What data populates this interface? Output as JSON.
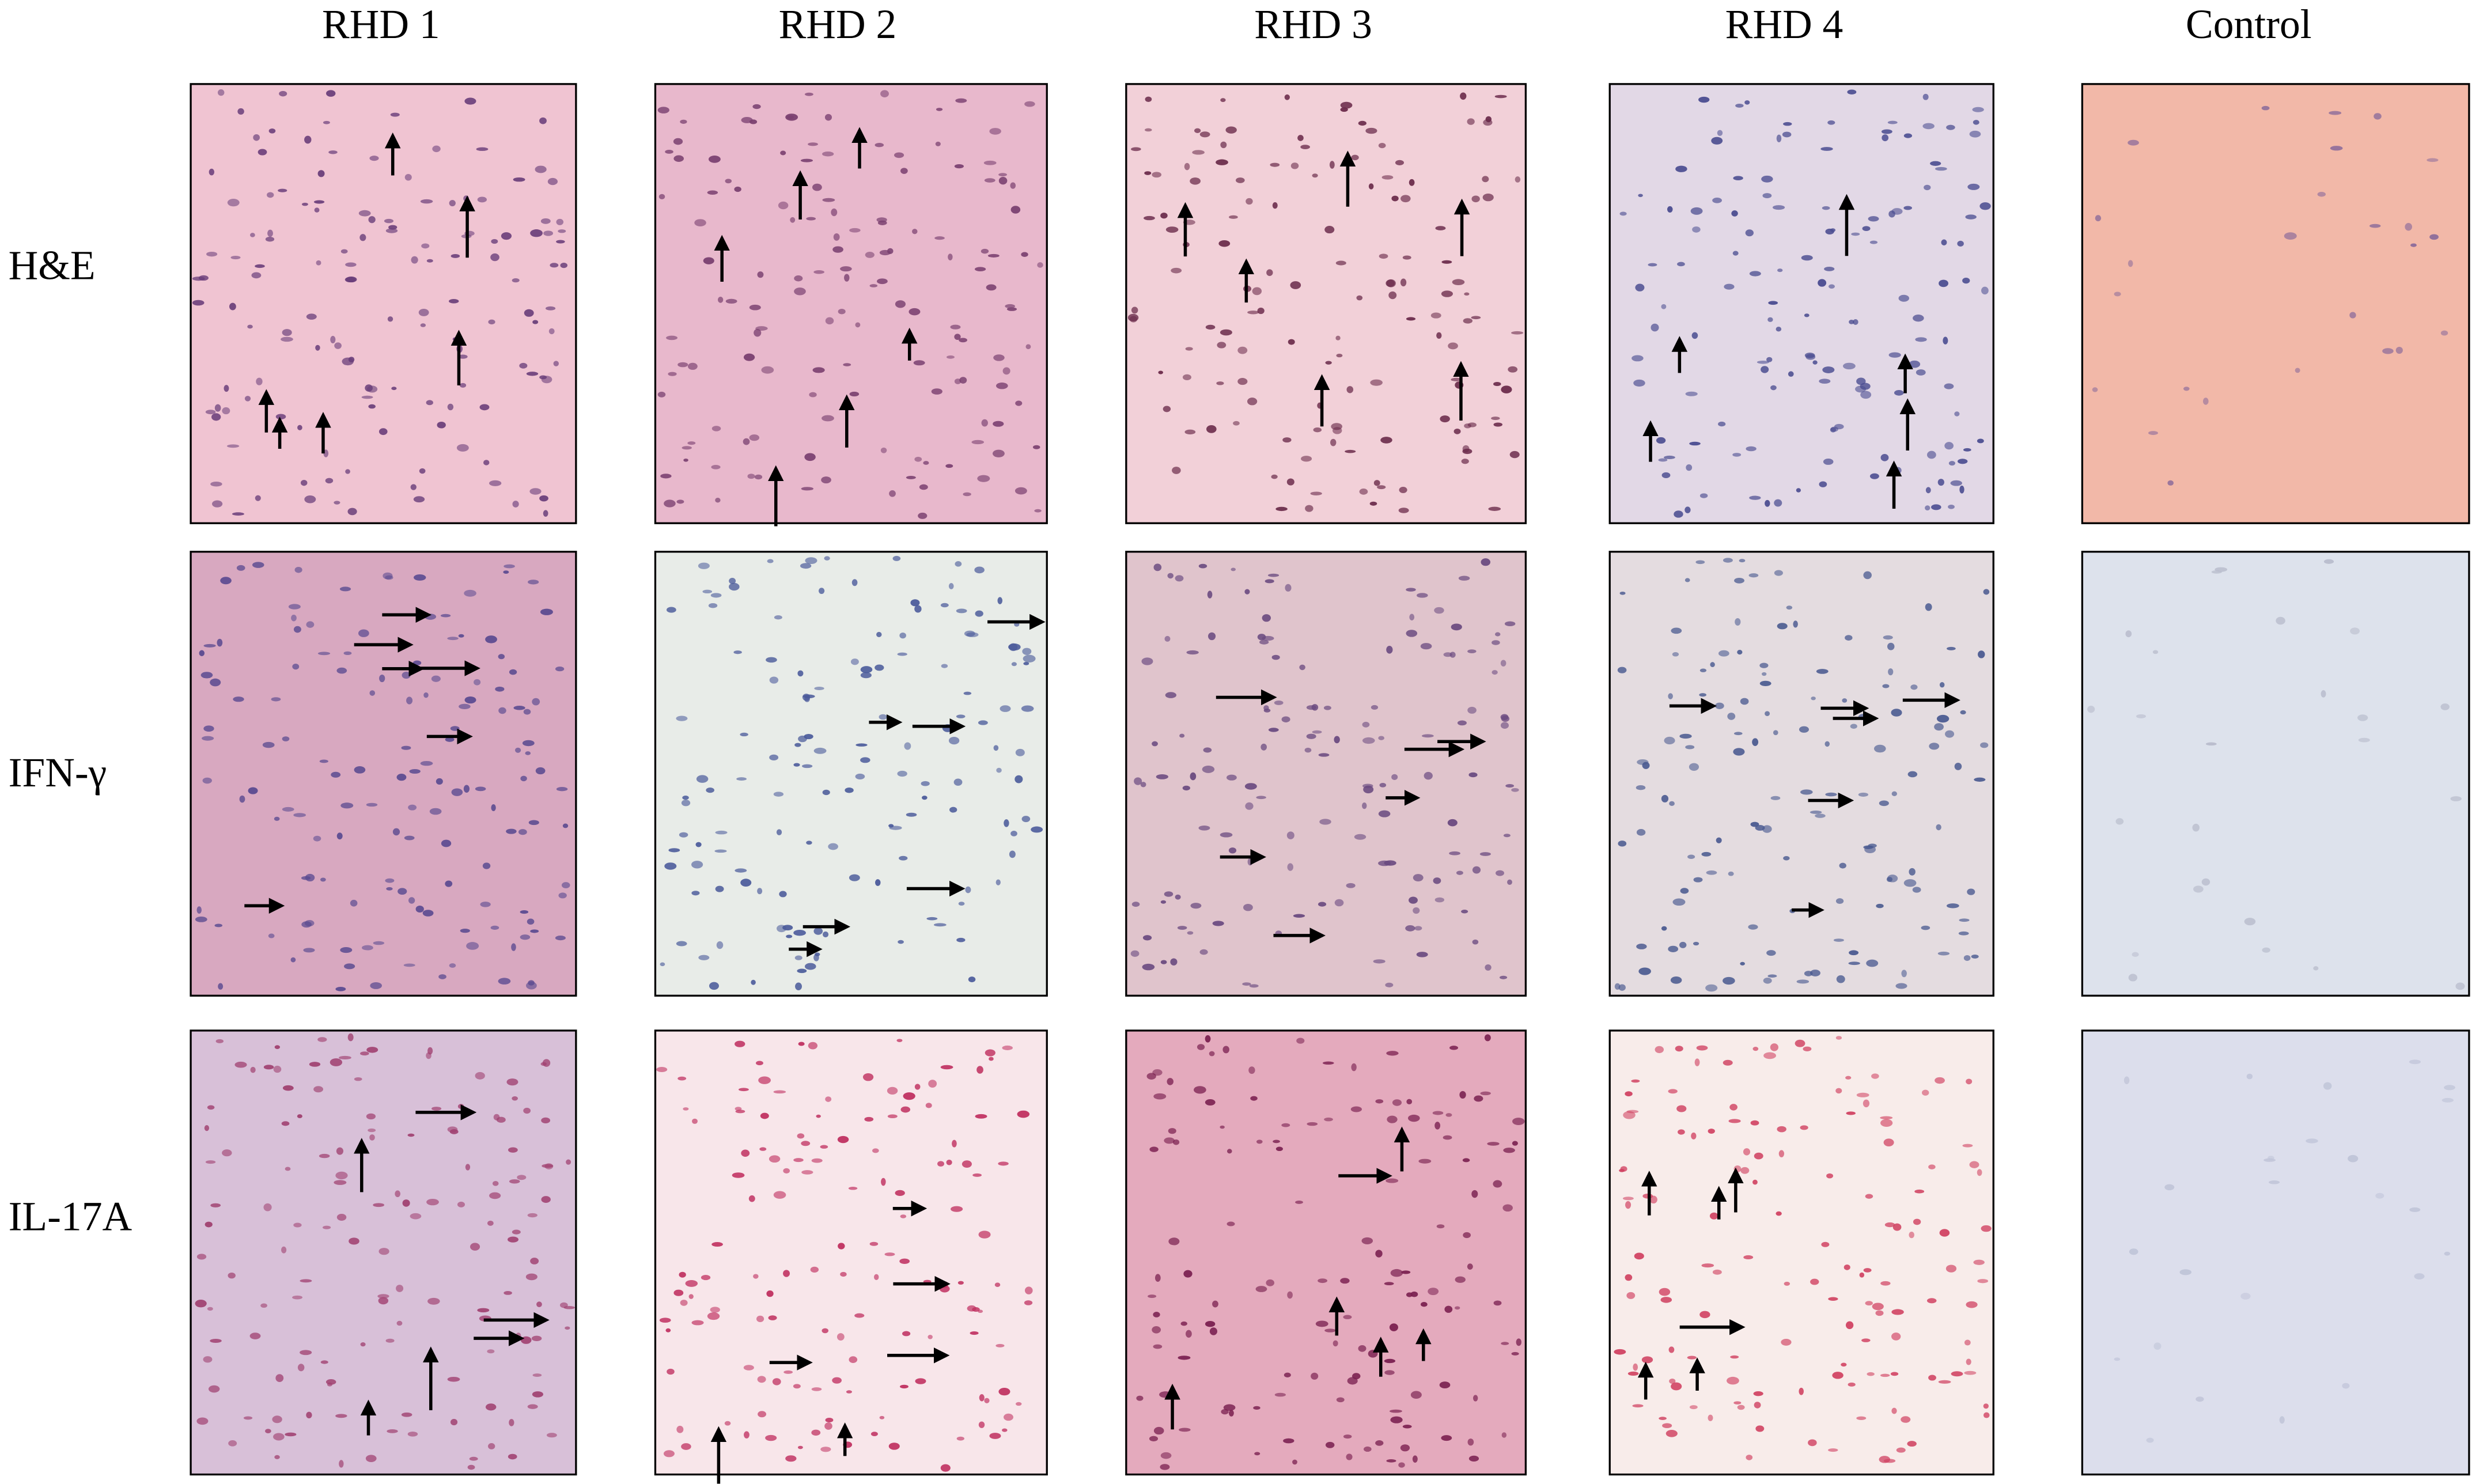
{
  "columns": [
    "RHD 1",
    "RHD 2",
    "RHD 3",
    "RHD 4",
    "Control"
  ],
  "rows": [
    "H&E",
    "IFN-γ",
    "IL-17A"
  ]
}
